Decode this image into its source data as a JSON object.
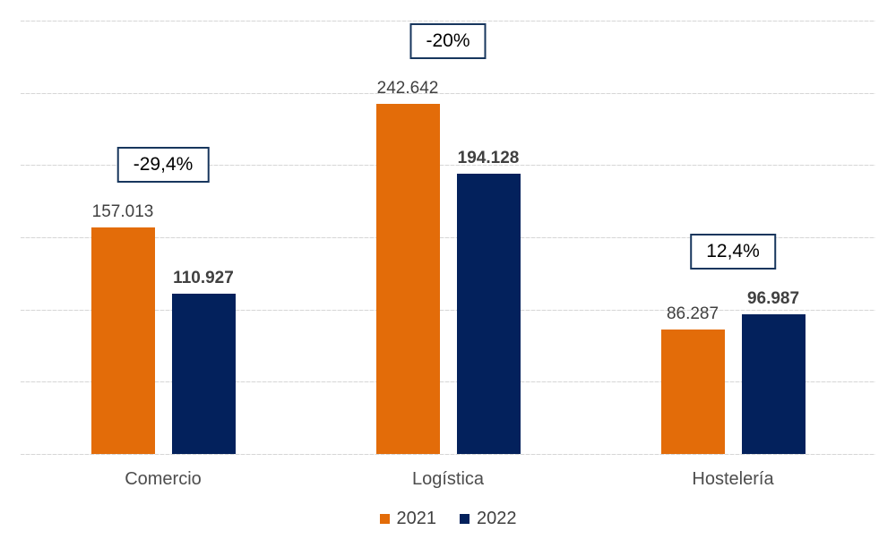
{
  "chart_data": {
    "type": "bar",
    "title": "",
    "xlabel": "",
    "ylabel": "",
    "categories": [
      "Comercio",
      "Logística",
      "Hostelería"
    ],
    "series": [
      {
        "name": "2021",
        "color": "#e36c09",
        "values": [
          157013,
          242642,
          86287
        ],
        "data_labels": [
          "157.013",
          "242.642",
          "86.287"
        ],
        "label_weight": "normal"
      },
      {
        "name": "2022",
        "color": "#03215c",
        "values": [
          110927,
          194128,
          96987
        ],
        "data_labels": [
          "110.927",
          "194.128",
          "96.987"
        ],
        "label_weight": "bold"
      }
    ],
    "annotations": [
      {
        "category": "Comercio",
        "label": "-29,4%"
      },
      {
        "category": "Logística",
        "label": "-20%"
      },
      {
        "category": "Hostelería",
        "label": "12,4%"
      }
    ],
    "ylim": [
      0,
      300000
    ],
    "y_gridline_step": 50000,
    "grid": "horizontal-dashed",
    "y_axis_labels_visible": false,
    "legend_position": "bottom"
  },
  "colors": {
    "series_2021": "#e36c09",
    "series_2022": "#03215c",
    "annotation_border": "#17365d",
    "annotation_text": "#000000",
    "data_label": "#404040",
    "category_label": "#4d4d4d",
    "gridline": "#d6d6d6",
    "background": "#ffffff"
  }
}
